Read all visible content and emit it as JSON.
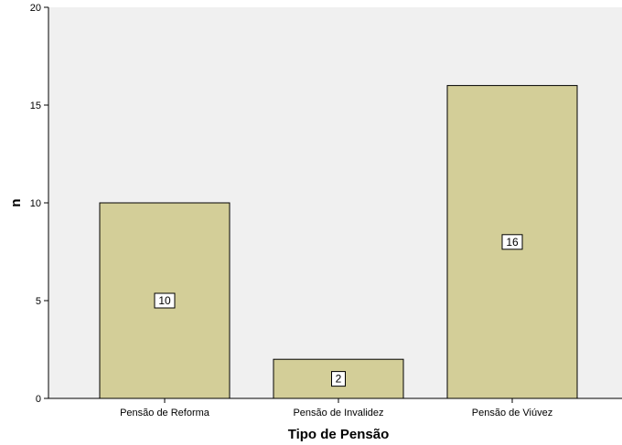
{
  "chart_data": {
    "type": "bar",
    "categories": [
      "Pensão de Reforma",
      "Pensão de Invalidez",
      "Pensão de Viúvez"
    ],
    "values": [
      10,
      2,
      16
    ],
    "data_labels": [
      "10",
      "2",
      "16"
    ],
    "title": "",
    "xlabel": "Tipo de Pensão",
    "ylabel": "n",
    "ylim": [
      0,
      20
    ],
    "yticks": [
      0,
      5,
      10,
      15,
      20
    ],
    "grid": false,
    "legend": "none",
    "colors": {
      "bar_fill": "#d3ce98",
      "bar_stroke": "#000000",
      "plot_background": "#f0f0f0",
      "page_background": "#ffffff"
    }
  }
}
